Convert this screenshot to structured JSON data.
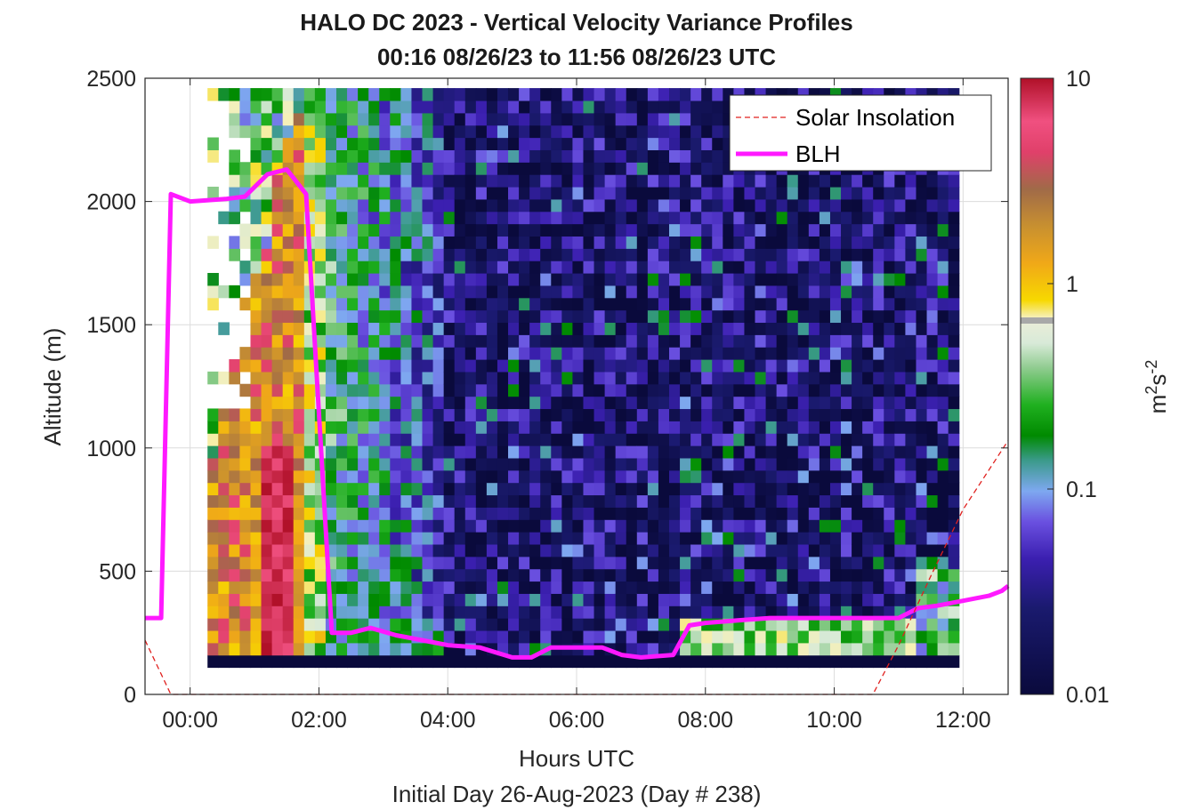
{
  "chart_data": {
    "type": "heatmap",
    "title": "HALO DC 2023 - Vertical Velocity Variance Profiles",
    "subtitle": "00:16 08/26/23 to 11:56 08/26/23  UTC",
    "xlabel": "Hours UTC",
    "footer": "Initial Day 26-Aug-2023 (Day # 238)",
    "ylabel": "Altitude (m)",
    "xlim": [
      -0.7,
      12.7
    ],
    "ylim": [
      0,
      2500
    ],
    "x_ticks": [
      "00:00",
      "02:00",
      "04:00",
      "06:00",
      "08:00",
      "10:00",
      "12:00"
    ],
    "y_ticks": [
      "0",
      "500",
      "1000",
      "1500",
      "2000",
      "2500"
    ],
    "grid": true,
    "colorbar": {
      "label_base": "m",
      "label_exp1": "2",
      "label_mid": "s",
      "label_exp2": "-2",
      "scale": "log",
      "range": [
        0.01,
        10
      ],
      "ticks": [
        "0.01",
        "0.1",
        "1",
        "10"
      ]
    },
    "legend": {
      "position": "top-right",
      "entries": [
        {
          "name": "Solar Insolation",
          "color": "#e0201e",
          "style": "dashed"
        },
        {
          "name": "BLH",
          "color": "#ff19ff",
          "style": "solid"
        }
      ]
    },
    "heatmap_summary": {
      "time_start_h": 0.27,
      "time_end_h": 11.93,
      "alt_range_m": [
        110,
        2500
      ],
      "note": "Strong variance (>1 m2 s-2) from 00:20 to 02:00 UTC below 2100 m; weak variance (<0.05) after 04:00 above 400 m; moderate variance near surface after 07:30 UTC."
    },
    "series": [
      {
        "name": "BLH",
        "x": [
          -0.7,
          -0.45,
          -0.3,
          0.0,
          0.55,
          0.85,
          1.2,
          1.5,
          1.8,
          2.2,
          2.5,
          2.8,
          3.2,
          3.6,
          4.0,
          4.5,
          5.0,
          5.3,
          5.6,
          6.0,
          6.4,
          6.7,
          7.0,
          7.5,
          7.75,
          8.0,
          8.5,
          9.0,
          9.5,
          10.0,
          10.5,
          11.0,
          11.3,
          11.6,
          12.0,
          12.4,
          12.6,
          12.7
        ],
        "y": [
          310,
          310,
          2030,
          2000,
          2010,
          2020,
          2110,
          2130,
          2030,
          250,
          250,
          270,
          240,
          220,
          200,
          190,
          150,
          150,
          190,
          190,
          190,
          160,
          150,
          160,
          280,
          290,
          300,
          310,
          310,
          310,
          310,
          310,
          350,
          360,
          380,
          400,
          420,
          440
        ]
      },
      {
        "name": "Solar Insolation",
        "x": [
          -0.7,
          -0.3,
          0.0,
          1.0,
          5.0,
          10.0,
          10.6,
          11.0,
          11.5,
          12.0,
          12.7
        ],
        "y": [
          220,
          0,
          0,
          0,
          0,
          0,
          0,
          200,
          480,
          750,
          1030
        ]
      }
    ]
  }
}
